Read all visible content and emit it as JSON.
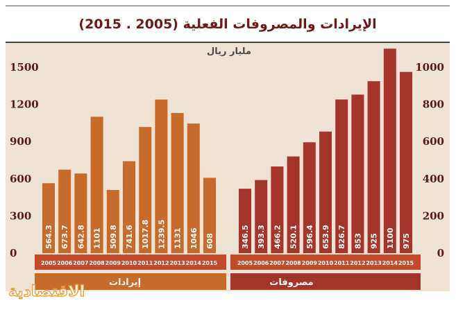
{
  "title": "الإيرادات والمصروفات الفعلية (2005 . 2015)",
  "unit": "مليار ريال",
  "logo_text": "الاقتصادية",
  "colors": {
    "revenue": "#c86a2a",
    "expenses": "#a5342a",
    "panel": "#efe3d3",
    "band_revenue": "#c86a2a",
    "band_expenses": "#a5342a",
    "year_strip": "#c44a2a",
    "axis_text": "#5a1a14"
  },
  "chart_data": [
    {
      "type": "bar",
      "series": [
        {
          "name": "إيرادات",
          "values": [
            564.3,
            673.7,
            642.8,
            1101,
            509.8,
            741.6,
            1017.8,
            1239.5,
            1131,
            1046,
            608
          ]
        }
      ],
      "data_labels": [
        "564.3",
        "673.7",
        "642.8",
        "1101",
        "509.8",
        "741.6",
        "1017.8",
        "1239.5",
        "1131",
        "1046",
        "608"
      ],
      "categories": [
        "2005",
        "2006",
        "2007",
        "2008",
        "2009",
        "2010",
        "2011",
        "2012",
        "2013",
        "2014",
        "2015"
      ],
      "ylim": [
        0,
        1500
      ],
      "yticks": [
        "0",
        "300",
        "600",
        "900",
        "1200",
        "1500"
      ],
      "axis_side": "left",
      "grid": false
    },
    {
      "type": "bar",
      "series": [
        {
          "name": "مصروفات",
          "values": [
            346.5,
            393.3,
            466.2,
            520.1,
            596.4,
            653.9,
            826.7,
            853,
            925,
            1100,
            975
          ]
        }
      ],
      "data_labels": [
        "346.5",
        "393.3",
        "466.2",
        "520.1",
        "596.4",
        "653.9",
        "826.7",
        "853",
        "925",
        "1100",
        "975"
      ],
      "categories": [
        "2005",
        "2006",
        "2007",
        "2008",
        "2009",
        "2010",
        "2011",
        "2012",
        "2013",
        "2014",
        "2015"
      ],
      "ylim": [
        0,
        1000
      ],
      "yticks": [
        "0",
        "200",
        "400",
        "600",
        "800",
        "1000"
      ],
      "axis_side": "right",
      "grid": false
    }
  ]
}
